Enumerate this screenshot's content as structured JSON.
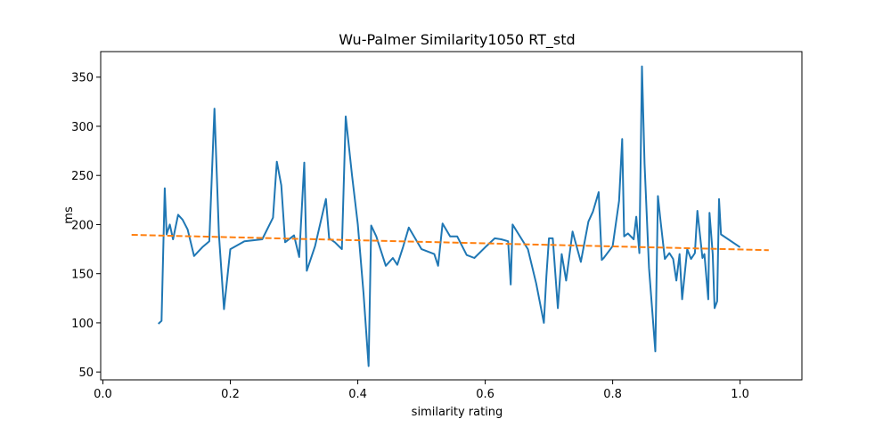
{
  "chart_data": {
    "type": "line",
    "title": "Wu-Palmer Similarity1050 RT_std",
    "xlabel": "similarity rating",
    "ylabel": "ms",
    "xlim": [
      -0.0035,
      1.097
    ],
    "ylim": [
      42,
      376
    ],
    "xticks": [
      0.0,
      0.2,
      0.4,
      0.6,
      0.8,
      1.0
    ],
    "xtick_labels": [
      "0.0",
      "0.2",
      "0.4",
      "0.6",
      "0.8",
      "1.0"
    ],
    "yticks": [
      50,
      100,
      150,
      200,
      250,
      300,
      350
    ],
    "ytick_labels": [
      "50",
      "100",
      "150",
      "200",
      "250",
      "300",
      "350"
    ],
    "grid": false,
    "colors": {
      "series": "#1f77b4",
      "trend": "#ff7f0e"
    },
    "series": [
      {
        "style": "solid",
        "x": [
          0.087,
          0.092,
          0.097,
          0.1,
          0.105,
          0.11,
          0.118,
          0.125,
          0.133,
          0.143,
          0.156,
          0.167,
          0.175,
          0.182,
          0.19,
          0.2,
          0.222,
          0.25,
          0.267,
          0.273,
          0.28,
          0.286,
          0.3,
          0.308,
          0.316,
          0.32,
          0.333,
          0.35,
          0.355,
          0.364,
          0.375,
          0.381,
          0.391,
          0.4,
          0.409,
          0.417,
          0.421,
          0.429,
          0.444,
          0.455,
          0.462,
          0.471,
          0.48,
          0.5,
          0.52,
          0.526,
          0.533,
          0.545,
          0.556,
          0.571,
          0.583,
          0.6,
          0.615,
          0.625,
          0.636,
          0.64,
          0.643,
          0.667,
          0.68,
          0.692,
          0.696,
          0.7,
          0.706,
          0.714,
          0.72,
          0.727,
          0.737,
          0.75,
          0.762,
          0.769,
          0.778,
          0.783,
          0.786,
          0.8,
          0.81,
          0.815,
          0.818,
          0.824,
          0.833,
          0.837,
          0.842,
          0.846,
          0.85,
          0.857,
          0.867,
          0.871,
          0.875,
          0.882,
          0.889,
          0.895,
          0.9,
          0.905,
          0.909,
          0.917,
          0.923,
          0.929,
          0.933,
          0.941,
          0.944,
          0.95,
          0.952,
          0.957,
          0.96,
          0.964,
          0.967,
          0.97,
          1.0
        ],
        "values": [
          99,
          102,
          237,
          190,
          200,
          185,
          210,
          205,
          195,
          168,
          177,
          183,
          318,
          190,
          114,
          175,
          183,
          185,
          207,
          264,
          240,
          182,
          189,
          167,
          263,
          153,
          178,
          226,
          186,
          182,
          175,
          310,
          250,
          200,
          130,
          56,
          199,
          188,
          158,
          166,
          159,
          177,
          197,
          175,
          170,
          158,
          201,
          188,
          188,
          169,
          166,
          177,
          186,
          185,
          183,
          139,
          200,
          175,
          140,
          100,
          147,
          186,
          186,
          115,
          170,
          143,
          193,
          162,
          203,
          213,
          233,
          164,
          166,
          178,
          224,
          287,
          188,
          191,
          185,
          208,
          171,
          361,
          262,
          156,
          71,
          229,
          205,
          165,
          171,
          165,
          143,
          170,
          124,
          175,
          165,
          171,
          214,
          166,
          170,
          124,
          212,
          170,
          115,
          122,
          226,
          190,
          177
        ]
      },
      {
        "style": "dashed",
        "x": [
          0.045,
          1.045
        ],
        "values": [
          189.5,
          174
        ]
      }
    ]
  }
}
